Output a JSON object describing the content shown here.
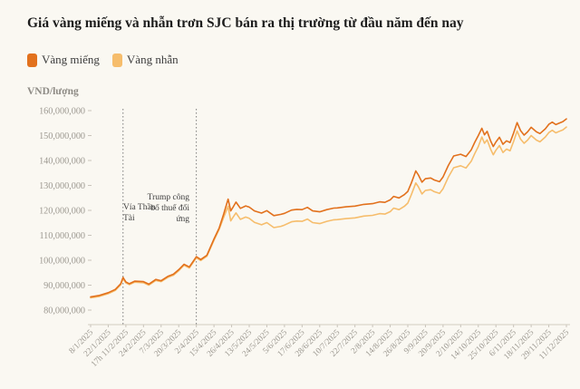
{
  "chart_data": {
    "type": "line",
    "title": "Giá vàng miếng và nhẫn trơn SJC bán ra thị trường từ đầu năm đến nay",
    "unit_label": "VND/lượng",
    "values_unit": "million VND/lượng",
    "ylim_million": [
      80,
      160
    ],
    "y_tick_labels": [
      "160,000,000",
      "150,000,000",
      "140,000,000",
      "130,000,000",
      "120,000,000",
      "110,000,000",
      "100,000,000",
      "90,000,000",
      "80,000,000"
    ],
    "x_tick_labels": [
      "8/1/2025",
      "22/1/2025",
      "17h 11/2/2025",
      "24/2/2025",
      "7/3/2025",
      "20/3/2025",
      "2/4/2025",
      "15/4/2025",
      "26/4/2025",
      "13/5/2025",
      "24/5/2025",
      "5/6/2025",
      "17/6/2025",
      "28/6/2025",
      "10/7/2025",
      "22/7/2025",
      "2/8/2025",
      "14/8/2025",
      "26/8/2025",
      "9/9/2025",
      "20/9/2025",
      "2/10/2025",
      "14/10/2025",
      "25/10/2025",
      "6/11/2025",
      "18/11/2025",
      "29/11/2025",
      "11/12/2025"
    ],
    "x": [
      0,
      0.5,
      1,
      1.4,
      1.7,
      1.84,
      2,
      2.2,
      2.5,
      3,
      3.3,
      3.7,
      4,
      4.4,
      4.7,
      5,
      5.3,
      5.6,
      6,
      6.25,
      6.6,
      7,
      7.3,
      7.55,
      7.8,
      7.95,
      8.1,
      8.25,
      8.5,
      8.8,
      9,
      9.3,
      9.7,
      10,
      10.4,
      10.8,
      11,
      11.4,
      11.7,
      12,
      12.3,
      12.6,
      13,
      13.4,
      13.8,
      14,
      14.5,
      15,
      15.5,
      16,
      16.4,
      16.7,
      17,
      17.2,
      17.5,
      17.8,
      18,
      18.2,
      18.45,
      18.6,
      18.8,
      19,
      19.3,
      19.5,
      19.8,
      20,
      20.3,
      20.6,
      21,
      21.3,
      21.6,
      21.8,
      22,
      22.2,
      22.35,
      22.5,
      22.7,
      22.85,
      23,
      23.2,
      23.4,
      23.6,
      23.8,
      24,
      24.2,
      24.4,
      24.6,
      24.8,
      25,
      25.3,
      25.5,
      25.8,
      26,
      26.2,
      26.4,
      26.6,
      26.8,
      27
    ],
    "series": [
      {
        "name": "Vàng miếng",
        "color": "#e2711d",
        "values": [
          85.3,
          85.9,
          87.0,
          88.3,
          90.5,
          93.1,
          91.3,
          90.6,
          91.6,
          91.4,
          90.4,
          92.3,
          91.8,
          93.6,
          94.4,
          96.2,
          98.4,
          97.3,
          101.4,
          100.3,
          102.0,
          108.5,
          113.0,
          118.5,
          124.5,
          119.8,
          121.5,
          123.3,
          120.8,
          121.8,
          121.3,
          119.8,
          118.9,
          119.9,
          117.9,
          118.4,
          118.8,
          120.1,
          120.4,
          120.3,
          121.2,
          119.8,
          119.4,
          120.3,
          120.9,
          121.0,
          121.4,
          121.7,
          122.4,
          122.7,
          123.4,
          123.2,
          124.2,
          125.6,
          125.0,
          126.3,
          127.6,
          131.0,
          135.8,
          134.2,
          131.3,
          132.7,
          133.0,
          132.2,
          131.5,
          133.4,
          138.0,
          141.8,
          142.5,
          141.6,
          144.3,
          147.3,
          150.0,
          152.9,
          150.3,
          151.7,
          147.8,
          145.6,
          147.4,
          149.3,
          146.5,
          147.9,
          147.2,
          151.0,
          155.2,
          152.0,
          150.2,
          151.5,
          153.3,
          151.5,
          150.8,
          152.7,
          154.5,
          155.4,
          154.4,
          155.0,
          155.6,
          156.7
        ]
      },
      {
        "name": "Vàng nhẫn",
        "color": "#f6bd6c",
        "values": [
          84.9,
          85.5,
          86.6,
          87.9,
          90.1,
          92.6,
          90.9,
          90.2,
          91.2,
          91.0,
          90.0,
          91.9,
          91.4,
          93.2,
          94.0,
          95.8,
          98.0,
          96.9,
          101.0,
          99.9,
          101.6,
          108.0,
          112.4,
          117.2,
          121.6,
          115.8,
          117.4,
          119.0,
          116.4,
          117.3,
          116.8,
          115.2,
          114.2,
          115.1,
          113.1,
          113.6,
          114.1,
          115.4,
          115.7,
          115.6,
          116.5,
          115.1,
          114.7,
          115.6,
          116.2,
          116.3,
          116.7,
          117.0,
          117.7,
          118.0,
          118.7,
          118.5,
          119.5,
          120.9,
          120.3,
          121.6,
          122.9,
          126.3,
          131.0,
          129.4,
          126.6,
          128.0,
          128.3,
          127.5,
          126.8,
          128.7,
          133.3,
          137.1,
          137.9,
          137.0,
          139.7,
          142.8,
          145.6,
          149.4,
          146.9,
          148.3,
          144.5,
          142.3,
          144.1,
          146.0,
          143.2,
          144.6,
          143.9,
          147.6,
          151.8,
          148.6,
          146.9,
          148.2,
          150.0,
          148.2,
          147.5,
          149.4,
          151.2,
          152.1,
          151.1,
          151.7,
          152.3,
          153.4
        ]
      }
    ],
    "annotations": [
      {
        "label": "Vía Thần Tài",
        "lines": [
          "Vía Thần",
          "Tài"
        ],
        "x_index": 1.84
      },
      {
        "label": "Trump công bố thuế đối ứng",
        "lines": [
          "Trump công",
          "bố thuế đối",
          "ứng"
        ],
        "x_index": 6
      }
    ],
    "legend_position": "top-left",
    "grid": false
  },
  "colors": {
    "background": "#faf8f2",
    "axis_text": "#9c9890",
    "axis_line": "#d9d4ca",
    "annotation_line": "#6f6f6f",
    "annotation_text": "#3e3e3e"
  }
}
